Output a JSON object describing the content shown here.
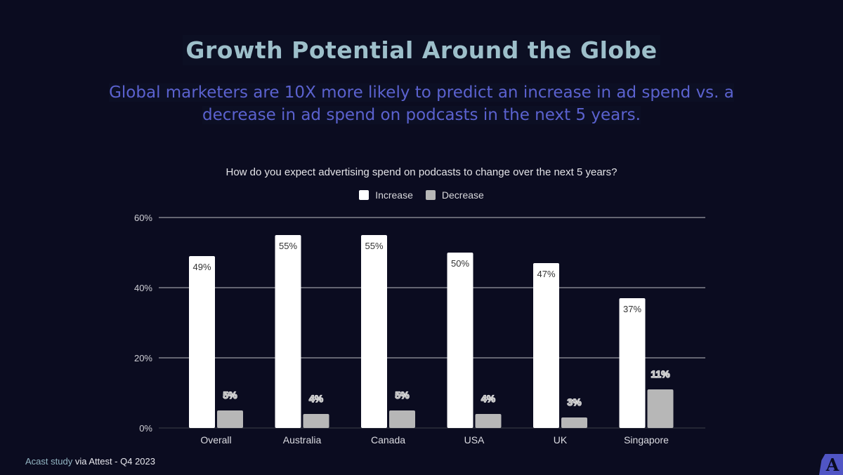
{
  "header": {
    "title": "Growth Potential Around the Globe",
    "subtitle": "Global marketers are 10X more likely to predict an increase in ad spend vs. a decrease in ad spend on podcasts in the next 5 years."
  },
  "footer": {
    "source_part1": "Acast study",
    "source_part2": " via Attest - Q4 2023",
    "logo_letter": "A"
  },
  "colors": {
    "background": "#0b0c20",
    "increase": "#ffffff",
    "decrease": "#b7b7b7",
    "title": "#9dbfca",
    "subtitle": "#5b62cf",
    "logo": "#5055c4"
  },
  "chart_data": {
    "type": "bar",
    "title": "How do you expect advertising spend on podcasts to change over the next 5 years?",
    "xlabel": "",
    "ylabel": "",
    "categories": [
      "Overall",
      "Australia",
      "Canada",
      "USA",
      "UK",
      "Singapore"
    ],
    "series": [
      {
        "name": "Increase",
        "values": [
          49,
          55,
          55,
          50,
          47,
          37
        ],
        "labels": [
          "49%",
          "55%",
          "55%",
          "50%",
          "47%",
          "37%"
        ]
      },
      {
        "name": "Decrease",
        "values": [
          5,
          4,
          5,
          4,
          3,
          11
        ],
        "labels": [
          "5%",
          "4%",
          "5%",
          "4%",
          "3%",
          "11%"
        ]
      }
    ],
    "ylim": [
      0,
      60
    ],
    "yticks": [
      0,
      20,
      40,
      60
    ],
    "ytick_labels": [
      "0%",
      "20%",
      "40%",
      "60%"
    ],
    "grid": true,
    "legend": "top-center"
  }
}
